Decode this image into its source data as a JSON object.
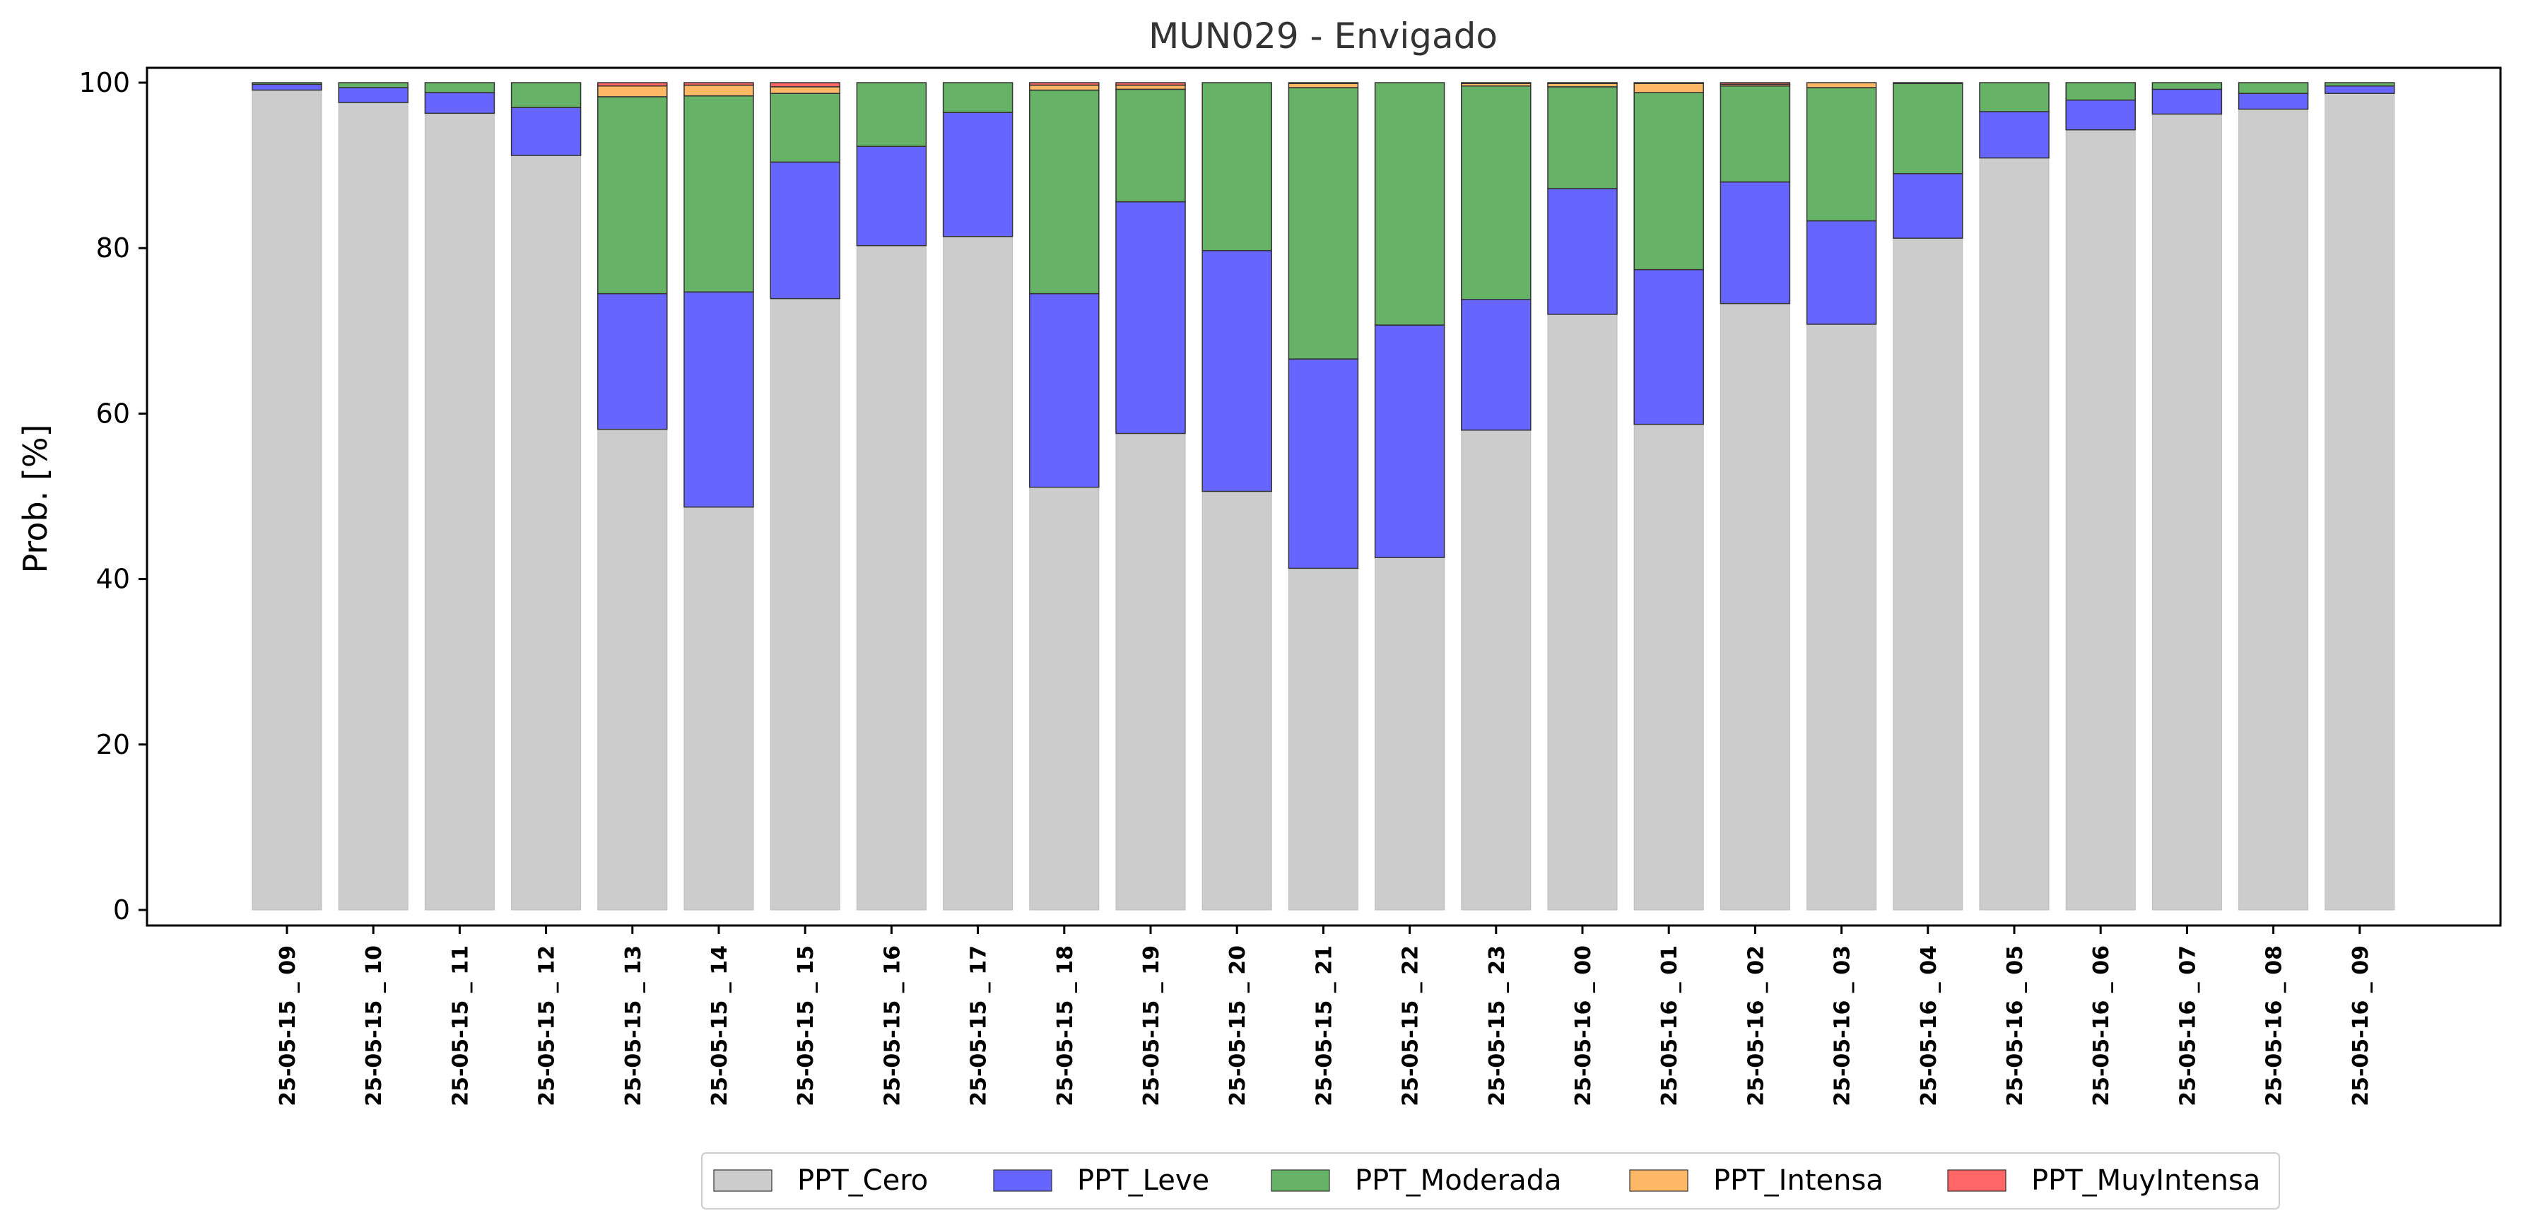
{
  "chart_data": {
    "type": "bar",
    "stacked": true,
    "title": "MUN029 - Envigado",
    "xlabel": "",
    "ylabel": "Prob. [%]",
    "ylim": [
      0,
      100
    ],
    "yticks": [
      "0",
      "20",
      "40",
      "60",
      "80",
      "100"
    ],
    "grid": false,
    "legend_position": "bottom-center",
    "categories": [
      "25-05-15 _ 09",
      "25-05-15 _ 10",
      "25-05-15 _ 11",
      "25-05-15 _ 12",
      "25-05-15 _ 13",
      "25-05-15 _ 14",
      "25-05-15 _ 15",
      "25-05-15 _ 16",
      "25-05-15 _ 17",
      "25-05-15 _ 18",
      "25-05-15 _ 19",
      "25-05-15 _ 20",
      "25-05-15 _ 21",
      "25-05-15 _ 22",
      "25-05-15 _ 23",
      "25-05-16 _ 00",
      "25-05-16 _ 01",
      "25-05-16 _ 02",
      "25-05-16 _ 03",
      "25-05-16 _ 04",
      "25-05-16 _ 05",
      "25-05-16 _ 06",
      "25-05-16 _ 07",
      "25-05-16 _ 08",
      "25-05-16 _ 09"
    ],
    "series": [
      {
        "name": "PPT_Cero",
        "color": "#cccccc",
        "values": [
          99.1,
          97.6,
          96.3,
          91.2,
          58.1,
          48.7,
          73.9,
          80.3,
          81.4,
          51.1,
          57.6,
          50.6,
          41.3,
          42.6,
          58.0,
          72.0,
          58.7,
          73.3,
          70.8,
          81.2,
          90.9,
          94.3,
          96.2,
          96.8,
          98.7
        ]
      },
      {
        "name": "PPT_Leve",
        "color": "#6666ff",
        "values": [
          0.7,
          1.8,
          2.5,
          5.8,
          16.4,
          26.0,
          16.5,
          12.0,
          15.0,
          23.4,
          28.0,
          29.1,
          25.3,
          28.1,
          15.8,
          15.2,
          18.7,
          14.7,
          12.5,
          7.8,
          5.6,
          3.6,
          3.0,
          1.9,
          0.9
        ]
      },
      {
        "name": "PPT_Moderada",
        "color": "#66b266",
        "values": [
          0.2,
          0.6,
          1.2,
          3.0,
          23.8,
          23.7,
          8.3,
          7.7,
          3.6,
          24.6,
          13.6,
          20.3,
          32.8,
          29.3,
          25.8,
          12.3,
          21.4,
          11.6,
          16.1,
          10.9,
          3.5,
          2.1,
          0.8,
          1.3,
          0.4
        ],
        "note": ""
      },
      {
        "name": "PPT_Intensa",
        "color": "#ffb866",
        "values": [
          0.0,
          0.0,
          0.0,
          0.0,
          1.3,
          1.3,
          0.8,
          0.0,
          0.0,
          0.6,
          0.5,
          0.0,
          0.5,
          0.0,
          0.3,
          0.4,
          1.1,
          0.2,
          0.6,
          0.1,
          0.0,
          0.0,
          0.0,
          0.0,
          0.0
        ]
      },
      {
        "name": "PPT_MuyIntensa",
        "color": "#ff6666",
        "values": [
          0.0,
          0.0,
          0.0,
          0.0,
          0.4,
          0.3,
          0.5,
          0.0,
          0.0,
          0.3,
          0.3,
          0.0,
          0.1,
          0.0,
          0.1,
          0.1,
          0.1,
          0.2,
          0.0,
          0.0,
          0.0,
          0.0,
          0.0,
          0.0,
          0.0
        ]
      }
    ]
  }
}
